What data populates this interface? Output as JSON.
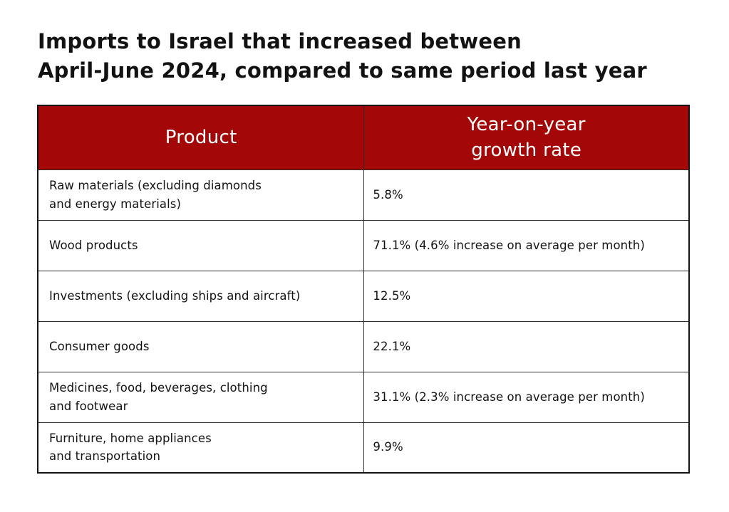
{
  "page": {
    "title": "Imports to Israel that increased between\nApril-June 2024, compared to same period last year",
    "background_color": "#ffffff",
    "header_bg_color": "#a40707",
    "header_text_color": "#ffffff",
    "border_color": "#2e2e2e"
  },
  "table": {
    "columns": {
      "product_header": "Product",
      "rate_header": "Year-on-year\ngrowth rate"
    },
    "rows": [
      {
        "product": "Raw materials (excluding diamonds\nand energy materials)",
        "rate": "5.8%"
      },
      {
        "product": "Wood products",
        "rate": "71.1% (4.6% increase on average per month)"
      },
      {
        "product": "Investments (excluding ships and aircraft)",
        "rate": "12.5%"
      },
      {
        "product": "Consumer goods",
        "rate": "22.1%"
      },
      {
        "product": "Medicines, food, beverages, clothing\nand footwear",
        "rate": "31.1% (2.3% increase on average per month)"
      },
      {
        "product": "Furniture, home appliances\nand transportation",
        "rate": "9.9%"
      }
    ]
  },
  "chart_data": {
    "type": "table",
    "title": "Imports to Israel that increased between April-June 2024, compared to same period last year",
    "columns": [
      "Product",
      "Year-on-year growth rate"
    ],
    "categories": [
      "Raw materials (excluding diamonds and energy materials)",
      "Wood products",
      "Investments (excluding ships and aircraft)",
      "Consumer goods",
      "Medicines, food, beverages, clothing and footwear",
      "Furniture, home appliances and transportation"
    ],
    "values_percent": [
      5.8,
      71.1,
      12.5,
      22.1,
      31.1,
      9.9
    ],
    "notes": [
      "",
      "4.6% increase on average per month",
      "",
      "",
      "2.3% increase on average per month",
      ""
    ],
    "header_bg": "#a40707"
  }
}
